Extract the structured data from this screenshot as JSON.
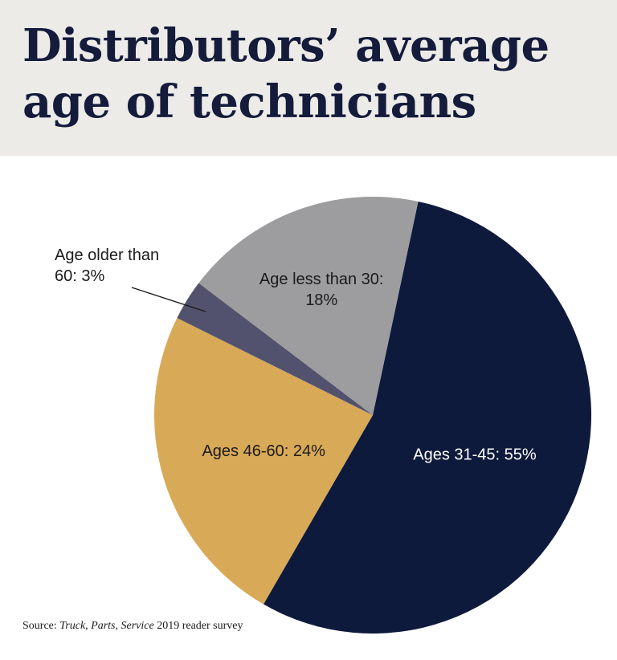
{
  "title": "Distributors’ average age of technicians",
  "source": {
    "prefix": "Source: ",
    "publication": "Truck, Parts, Service",
    "suffix": " 2019 reader survey"
  },
  "colors": {
    "header_bg": "#ecebe8",
    "title": "#141b3b"
  },
  "chart_data": {
    "type": "pie",
    "title": "Distributors’ average age of technicians",
    "slices": [
      {
        "label": "Ages 31-45: 55%",
        "value": 55,
        "color": "#0e1a3c",
        "text_color": "#ffffff"
      },
      {
        "label": "Ages 46-60: 24%",
        "value": 24,
        "color": "#d8a957",
        "text_color": "#1b1b1b"
      },
      {
        "label": "Age older than 60: 3%",
        "value": 3,
        "color": "#52526e",
        "text_color": "#1b1b1b"
      },
      {
        "label": "Age less than 30: 18%",
        "value": 18,
        "color": "#9d9c9e",
        "text_color": "#1b1b1b"
      }
    ],
    "label_lines": {
      "Ages 31-45: 55%": [
        "Ages 31-45: 55%"
      ],
      "Ages 46-60: 24%": [
        "Ages 46-60: 24%"
      ],
      "Age older than 60: 3%": [
        "Age older than",
        "60: 3%"
      ],
      "Age less than 30: 18%": [
        "Age less than 30:",
        "18%"
      ]
    }
  }
}
